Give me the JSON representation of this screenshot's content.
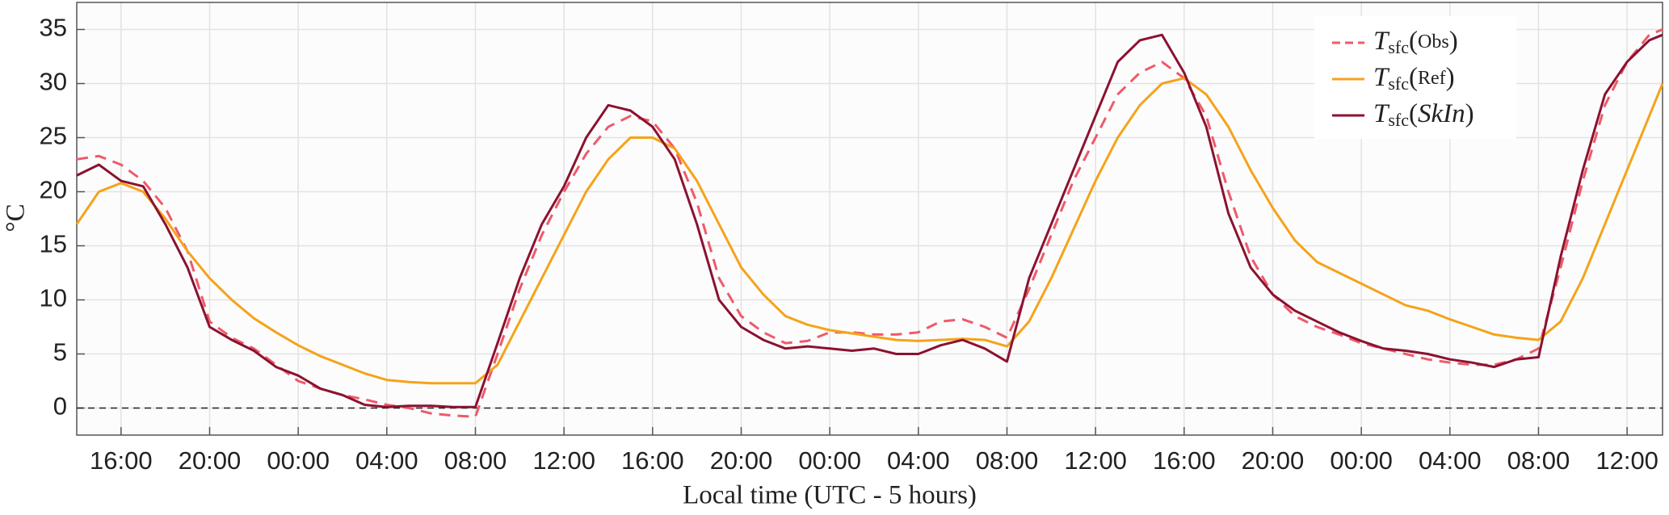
{
  "chart_data": {
    "type": "line",
    "xlabel": "Local time (UTC - 5 hours)",
    "ylabel": "°C",
    "legend_symbol": "T",
    "legend_subscript": "sfc",
    "legend_brackets": [
      "(",
      ")"
    ],
    "legend": "upper right",
    "grid": true,
    "hline": 0,
    "x": [
      14,
      15,
      16,
      17,
      18,
      19,
      20,
      21,
      22,
      23,
      24,
      25,
      26,
      27,
      28,
      29,
      30,
      31,
      32,
      33,
      34,
      35,
      36,
      37,
      38,
      39,
      40,
      41,
      42,
      43,
      44,
      45,
      46,
      47,
      48,
      49,
      50,
      51,
      52,
      53,
      54,
      55,
      56,
      57,
      58,
      59,
      60,
      61,
      62,
      63,
      64,
      65,
      66,
      67,
      68,
      69,
      70,
      71,
      72,
      73,
      74,
      75,
      76,
      77,
      78,
      79,
      80,
      81,
      82,
      83,
      84,
      85,
      85.6
    ],
    "xlim": [
      14,
      85.6
    ],
    "xticks": [
      {
        "value": 16,
        "label": "16:00"
      },
      {
        "value": 20,
        "label": "20:00"
      },
      {
        "value": 24,
        "label": "00:00"
      },
      {
        "value": 28,
        "label": "04:00"
      },
      {
        "value": 32,
        "label": "08:00"
      },
      {
        "value": 36,
        "label": "12:00"
      },
      {
        "value": 40,
        "label": "16:00"
      },
      {
        "value": 44,
        "label": "20:00"
      },
      {
        "value": 48,
        "label": "00:00"
      },
      {
        "value": 52,
        "label": "04:00"
      },
      {
        "value": 56,
        "label": "08:00"
      },
      {
        "value": 60,
        "label": "12:00"
      },
      {
        "value": 64,
        "label": "16:00"
      },
      {
        "value": 68,
        "label": "20:00"
      },
      {
        "value": 72,
        "label": "00:00"
      },
      {
        "value": 76,
        "label": "04:00"
      },
      {
        "value": 80,
        "label": "08:00"
      },
      {
        "value": 84,
        "label": "12:00"
      }
    ],
    "ylim": [
      -2.5,
      37.5
    ],
    "yticks": [
      0,
      5,
      10,
      15,
      20,
      25,
      30,
      35
    ],
    "series": [
      {
        "name": "Obs",
        "color": "#ef5a6a",
        "dash": true,
        "values": [
          23,
          23.3,
          22.5,
          21,
          18.5,
          14.5,
          8,
          6.5,
          5.5,
          4,
          2.5,
          1.8,
          1.2,
          0.8,
          0.3,
          0,
          -0.5,
          -0.7,
          -0.8,
          5,
          11,
          16,
          20,
          23.5,
          26,
          27,
          26.5,
          24,
          19,
          12,
          8.5,
          7,
          6,
          6.2,
          7,
          7,
          6.8,
          6.8,
          7,
          8,
          8.2,
          7.5,
          6.5,
          11,
          16,
          21,
          25,
          29,
          31,
          32,
          30.5,
          27,
          20,
          14,
          10.5,
          8.5,
          7.5,
          6.8,
          6,
          5.5,
          5,
          4.5,
          4.2,
          4,
          4,
          4.5,
          5.5,
          13,
          21,
          28,
          32,
          34.5,
          35
        ]
      },
      {
        "name": "Ref",
        "color": "#f5a31a",
        "dash": false,
        "values": [
          17,
          20,
          20.8,
          20,
          17.5,
          14.5,
          12,
          10,
          8.3,
          7,
          5.8,
          4.8,
          4,
          3.2,
          2.6,
          2.4,
          2.3,
          2.3,
          2.3,
          4,
          8,
          12,
          16,
          20,
          23,
          25,
          25,
          24,
          21,
          17,
          13,
          10.5,
          8.5,
          7.7,
          7.2,
          6.9,
          6.6,
          6.3,
          6.2,
          6.3,
          6.4,
          6.3,
          5.7,
          8,
          12,
          16.5,
          21,
          25,
          28,
          30,
          30.5,
          29,
          26,
          22,
          18.5,
          15.5,
          13.5,
          12.5,
          11.5,
          10.5,
          9.5,
          9,
          8.2,
          7.5,
          6.8,
          6.5,
          6.3,
          8,
          12,
          17,
          22,
          27,
          30
        ]
      },
      {
        "name": "SkIn",
        "color": "#8b1230",
        "dash": false,
        "values": [
          21.5,
          22.5,
          21,
          20.5,
          17,
          13,
          7.5,
          6.3,
          5.3,
          3.8,
          3,
          1.8,
          1.2,
          0.3,
          0.1,
          0.2,
          0.2,
          0.1,
          0.1,
          6,
          12,
          17,
          20.5,
          25,
          28,
          27.5,
          26,
          23,
          17,
          10,
          7.5,
          6.3,
          5.5,
          5.7,
          5.5,
          5.3,
          5.5,
          5,
          5,
          5.8,
          6.3,
          5.5,
          4.3,
          12,
          17,
          22,
          27,
          32,
          34,
          34.5,
          31,
          26,
          18,
          13,
          10.5,
          9,
          8,
          7,
          6.2,
          5.5,
          5.3,
          5,
          4.5,
          4.2,
          3.8,
          4.5,
          4.7,
          14,
          22,
          29,
          32,
          34,
          34.5
        ]
      }
    ]
  }
}
